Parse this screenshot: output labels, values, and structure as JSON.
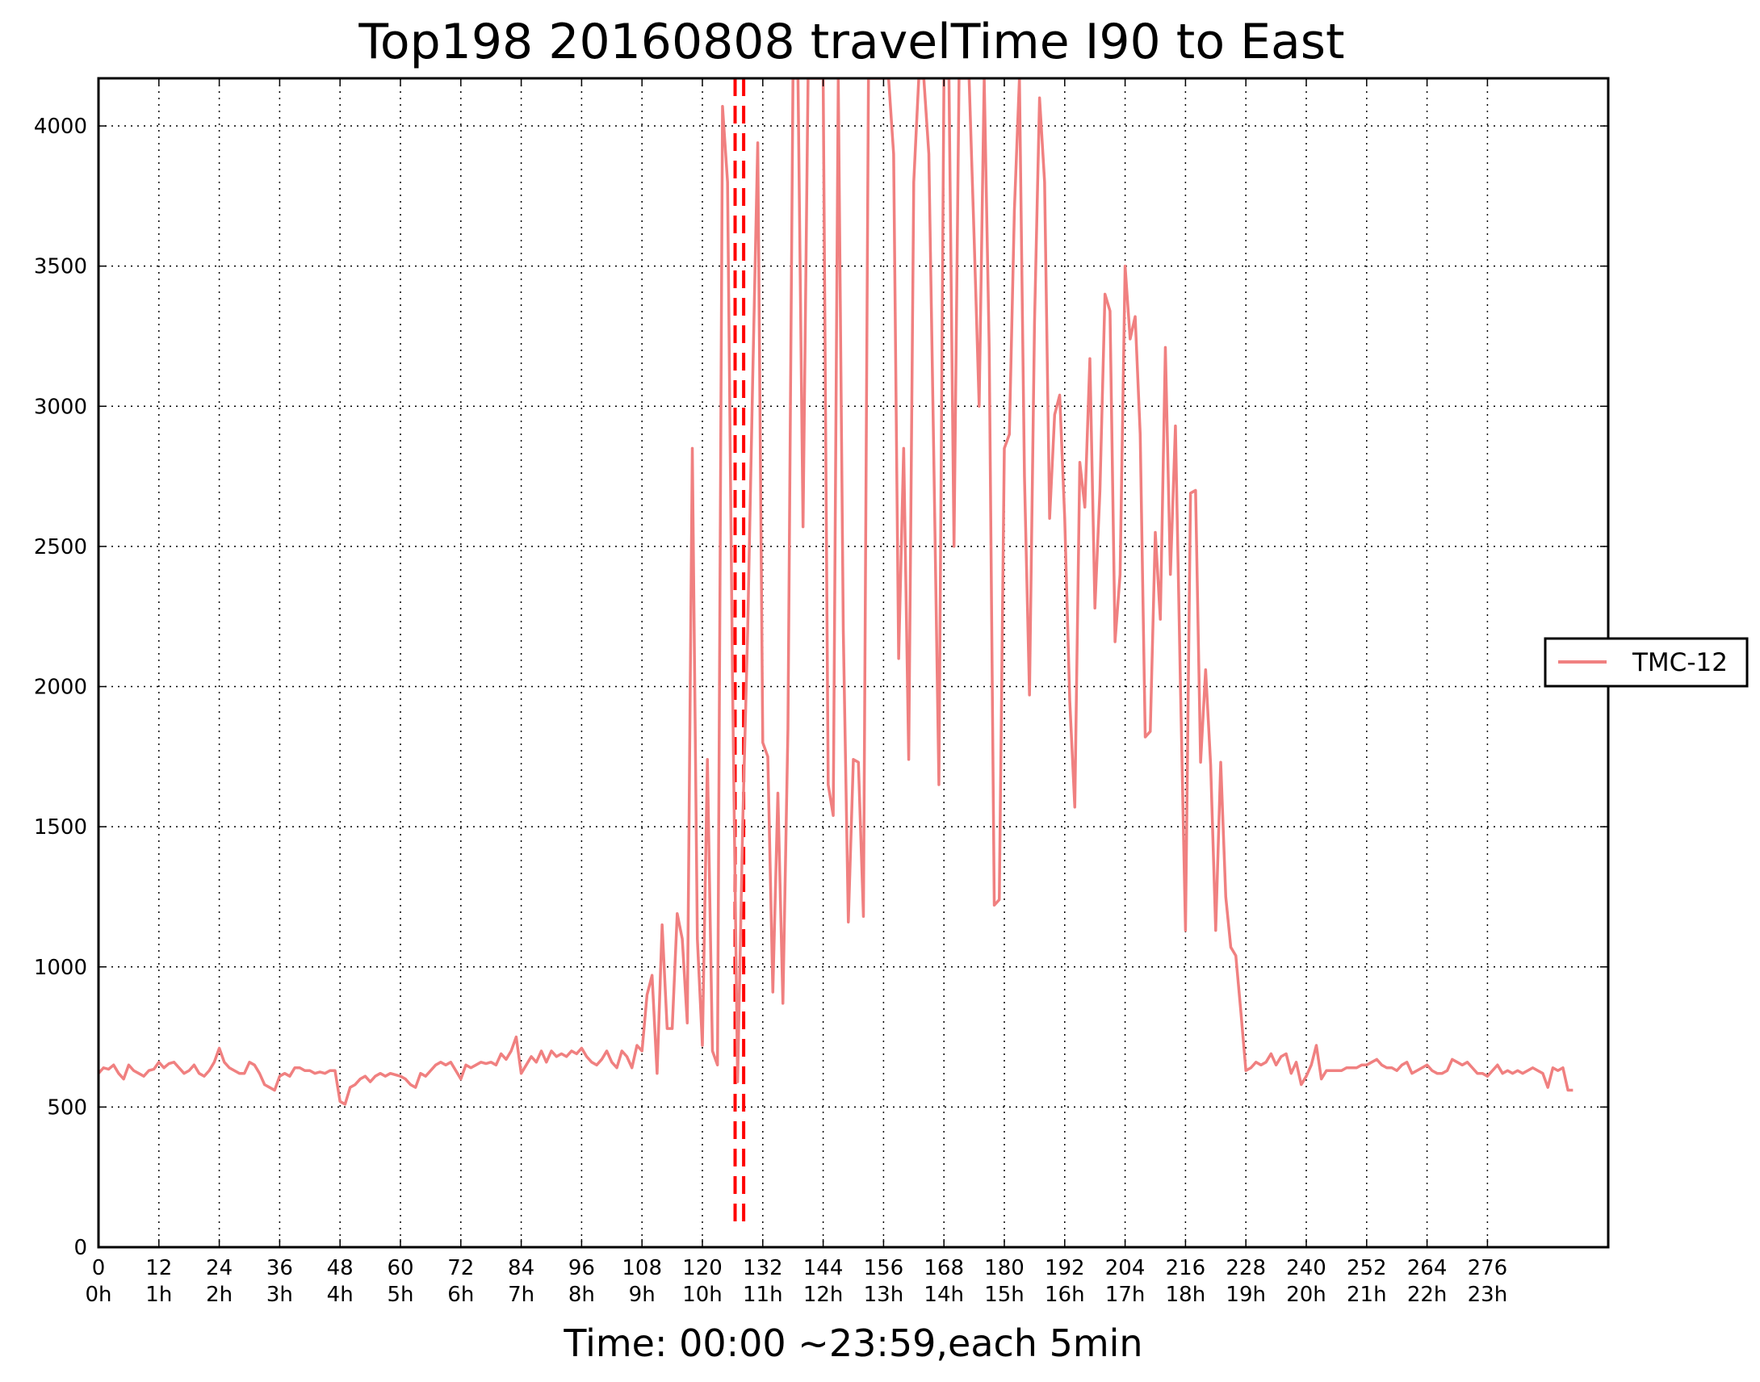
{
  "chart_data": {
    "type": "line",
    "title": "Top198 20160808 travelTime I90 to East",
    "xlabel": "Time: 00:00 ~23:59,each 5min",
    "ylabel": "",
    "xlim": [
      0,
      300
    ],
    "ylim": [
      0,
      4170
    ],
    "grid": true,
    "legend_position": "right",
    "x_ticks": [
      {
        "value": 0,
        "label": "0",
        "sublabel": "0h"
      },
      {
        "value": 12,
        "label": "12",
        "sublabel": "1h"
      },
      {
        "value": 24,
        "label": "24",
        "sublabel": "2h"
      },
      {
        "value": 36,
        "label": "36",
        "sublabel": "3h"
      },
      {
        "value": 48,
        "label": "48",
        "sublabel": "4h"
      },
      {
        "value": 60,
        "label": "60",
        "sublabel": "5h"
      },
      {
        "value": 72,
        "label": "72",
        "sublabel": "6h"
      },
      {
        "value": 84,
        "label": "84",
        "sublabel": "7h"
      },
      {
        "value": 96,
        "label": "96",
        "sublabel": "8h"
      },
      {
        "value": 108,
        "label": "108",
        "sublabel": "9h"
      },
      {
        "value": 120,
        "label": "120",
        "sublabel": "10h"
      },
      {
        "value": 132,
        "label": "132",
        "sublabel": "11h"
      },
      {
        "value": 144,
        "label": "144",
        "sublabel": "12h"
      },
      {
        "value": 156,
        "label": "156",
        "sublabel": "13h"
      },
      {
        "value": 168,
        "label": "168",
        "sublabel": "14h"
      },
      {
        "value": 180,
        "label": "180",
        "sublabel": "15h"
      },
      {
        "value": 192,
        "label": "192",
        "sublabel": "16h"
      },
      {
        "value": 204,
        "label": "204",
        "sublabel": "17h"
      },
      {
        "value": 216,
        "label": "216",
        "sublabel": "18h"
      },
      {
        "value": 228,
        "label": "228",
        "sublabel": "19h"
      },
      {
        "value": 240,
        "label": "240",
        "sublabel": "20h"
      },
      {
        "value": 252,
        "label": "252",
        "sublabel": "21h"
      },
      {
        "value": 264,
        "label": "264",
        "sublabel": "22h"
      },
      {
        "value": 276,
        "label": "276",
        "sublabel": "23h"
      }
    ],
    "y_ticks": [
      {
        "value": 0,
        "label": "0"
      },
      {
        "value": 500,
        "label": "500"
      },
      {
        "value": 1000,
        "label": "1000"
      },
      {
        "value": 1500,
        "label": "1500"
      },
      {
        "value": 2000,
        "label": "2000"
      },
      {
        "value": 2500,
        "label": "2500"
      },
      {
        "value": 3000,
        "label": "3000"
      },
      {
        "value": 3500,
        "label": "3500"
      },
      {
        "value": 4000,
        "label": "4000"
      }
    ],
    "vlines": [
      {
        "x": 126.5,
        "color": "#ff0000",
        "style": "dashed"
      },
      {
        "x": 128.2,
        "color": "#ff0000",
        "style": "dashed"
      }
    ],
    "series": [
      {
        "name": "TMC-12",
        "color": "#f08080",
        "values": [
          620,
          640,
          635,
          650,
          620,
          600,
          650,
          630,
          620,
          610,
          630,
          635,
          660,
          640,
          655,
          660,
          640,
          620,
          630,
          650,
          620,
          610,
          630,
          660,
          710,
          660,
          640,
          630,
          620,
          620,
          660,
          650,
          620,
          580,
          570,
          560,
          610,
          620,
          610,
          640,
          640,
          630,
          630,
          620,
          625,
          620,
          630,
          630,
          520,
          510,
          570,
          580,
          600,
          610,
          590,
          610,
          620,
          610,
          620,
          615,
          610,
          600,
          580,
          570,
          620,
          610,
          630,
          650,
          660,
          650,
          660,
          630,
          600,
          650,
          640,
          650,
          660,
          655,
          660,
          650,
          690,
          670,
          700,
          750,
          620,
          650,
          680,
          660,
          700,
          660,
          700,
          680,
          690,
          680,
          700,
          690,
          710,
          680,
          660,
          650,
          670,
          700,
          660,
          640,
          700,
          680,
          640,
          720,
          700,
          900,
          970,
          620,
          1150,
          780,
          780,
          1190,
          1100,
          800,
          2850,
          1100,
          720,
          1740,
          700,
          650,
          4070,
          3800,
          2000,
          590,
          1500,
          2200,
          3100,
          3940,
          1800,
          1750,
          910,
          1620,
          870,
          1850,
          4170,
          4170,
          2570,
          4170,
          4170,
          4170,
          4170,
          1650,
          1540,
          4170,
          2200,
          1160,
          1740,
          1730,
          1180,
          4170,
          4170,
          4170,
          4170,
          4170,
          3900,
          2100,
          2850,
          1740,
          3800,
          4170,
          4170,
          3900,
          2800,
          1650,
          4170,
          4170,
          2500,
          4170,
          4170,
          4170,
          3600,
          3000,
          4170,
          3200,
          1220,
          1240,
          2850,
          2900,
          3700,
          4170,
          2750,
          1970,
          3300,
          4100,
          3800,
          2600,
          2970,
          3040,
          2600,
          1950,
          1570,
          2800,
          2640,
          3170,
          2280,
          2700,
          3400,
          3340,
          2160,
          2400,
          3500,
          3240,
          3320,
          2900,
          1820,
          1840,
          2550,
          2240,
          3210,
          2400,
          2930,
          2000,
          1130,
          2690,
          2700,
          1730,
          2060,
          1720,
          1130,
          1730,
          1250,
          1070,
          1040,
          840,
          630,
          640,
          660,
          650,
          660,
          690,
          650,
          680,
          690,
          620,
          660,
          580,
          610,
          650,
          720,
          600,
          630,
          630,
          630,
          630,
          640,
          640,
          640,
          650,
          650,
          660,
          670,
          650,
          640,
          640,
          630,
          650,
          660,
          620,
          630,
          640,
          650,
          630,
          620,
          620,
          630,
          670,
          660,
          650,
          660,
          640,
          620,
          620,
          610,
          630,
          650,
          620,
          630,
          620,
          630,
          620,
          630,
          640,
          630,
          620,
          570,
          640,
          630,
          640,
          560,
          560
        ]
      }
    ]
  }
}
